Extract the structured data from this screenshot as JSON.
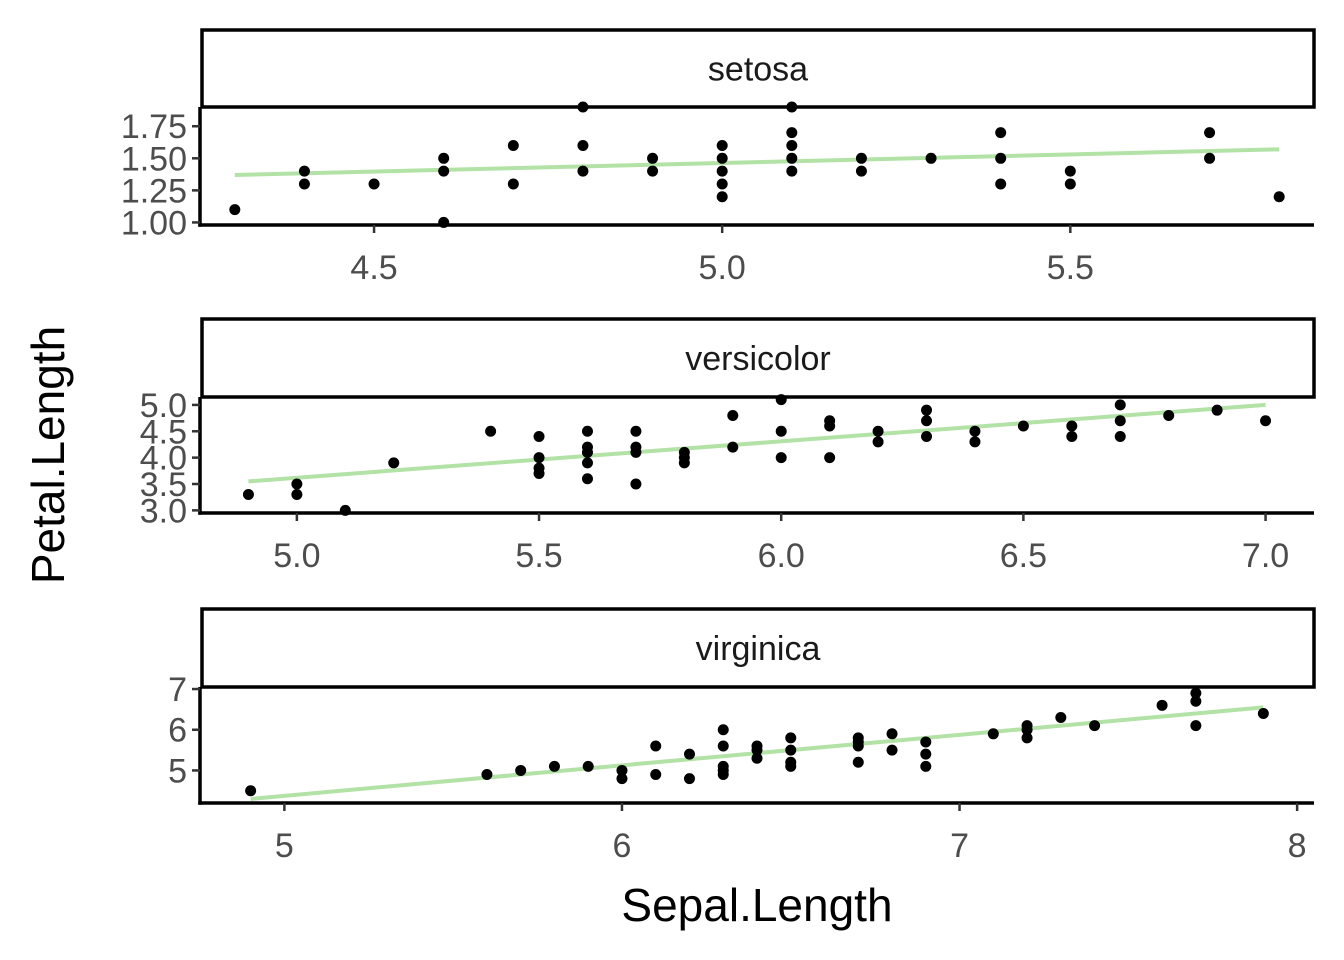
{
  "chart_data": {
    "type": "scatter",
    "xlabel": "Sepal.Length",
    "ylabel": "Petal.Length",
    "fit_color": "#b3e2a7",
    "point_color": "#000000",
    "grid": false,
    "panels": [
      {
        "name": "setosa",
        "xlim": [
          4.25,
          5.85
        ],
        "ylim": [
          0.98,
          1.9
        ],
        "xticks": [
          4.5,
          5.0,
          5.5
        ],
        "xtick_labels": [
          "4.5",
          "5.0",
          "5.5"
        ],
        "yticks": [
          1.0,
          1.25,
          1.5,
          1.75
        ],
        "ytick_labels": [
          "1.00",
          "1.25",
          "1.50",
          "1.75"
        ],
        "fit": {
          "x": [
            4.3,
            5.8
          ],
          "y": [
            1.37,
            1.57
          ]
        },
        "points": [
          [
            4.3,
            1.1
          ],
          [
            4.4,
            1.3
          ],
          [
            4.4,
            1.4
          ],
          [
            4.5,
            1.3
          ],
          [
            4.6,
            1.0
          ],
          [
            4.6,
            1.4
          ],
          [
            4.6,
            1.5
          ],
          [
            4.7,
            1.3
          ],
          [
            4.7,
            1.6
          ],
          [
            4.8,
            1.4
          ],
          [
            4.8,
            1.6
          ],
          [
            4.8,
            1.9
          ],
          [
            4.9,
            1.4
          ],
          [
            4.9,
            1.5
          ],
          [
            5.0,
            1.2
          ],
          [
            5.0,
            1.3
          ],
          [
            5.0,
            1.4
          ],
          [
            5.0,
            1.5
          ],
          [
            5.0,
            1.6
          ],
          [
            5.1,
            1.4
          ],
          [
            5.1,
            1.5
          ],
          [
            5.1,
            1.6
          ],
          [
            5.1,
            1.7
          ],
          [
            5.1,
            1.9
          ],
          [
            5.2,
            1.4
          ],
          [
            5.2,
            1.5
          ],
          [
            5.3,
            1.5
          ],
          [
            5.4,
            1.3
          ],
          [
            5.4,
            1.5
          ],
          [
            5.4,
            1.7
          ],
          [
            5.5,
            1.3
          ],
          [
            5.5,
            1.4
          ],
          [
            5.7,
            1.5
          ],
          [
            5.7,
            1.7
          ],
          [
            5.8,
            1.2
          ]
        ]
      },
      {
        "name": "versicolor",
        "xlim": [
          4.8,
          7.1
        ],
        "ylim": [
          2.95,
          5.15
        ],
        "xticks": [
          5.0,
          5.5,
          6.0,
          6.5,
          7.0
        ],
        "xtick_labels": [
          "5.0",
          "5.5",
          "6.0",
          "6.5",
          "7.0"
        ],
        "yticks": [
          3.0,
          3.5,
          4.0,
          4.5,
          5.0
        ],
        "ytick_labels": [
          "3.0",
          "3.5",
          "4.0",
          "4.5",
          "5.0"
        ],
        "fit": {
          "x": [
            4.9,
            7.0
          ],
          "y": [
            3.55,
            5.0
          ]
        },
        "points": [
          [
            4.9,
            3.3
          ],
          [
            5.0,
            3.3
          ],
          [
            5.0,
            3.5
          ],
          [
            5.1,
            3.0
          ],
          [
            5.2,
            3.9
          ],
          [
            5.4,
            4.5
          ],
          [
            5.5,
            3.7
          ],
          [
            5.5,
            3.8
          ],
          [
            5.5,
            4.0
          ],
          [
            5.5,
            4.4
          ],
          [
            5.6,
            3.6
          ],
          [
            5.6,
            3.9
          ],
          [
            5.6,
            4.1
          ],
          [
            5.6,
            4.2
          ],
          [
            5.6,
            4.5
          ],
          [
            5.7,
            3.5
          ],
          [
            5.7,
            4.1
          ],
          [
            5.7,
            4.2
          ],
          [
            5.7,
            4.5
          ],
          [
            5.8,
            3.9
          ],
          [
            5.8,
            4.0
          ],
          [
            5.8,
            4.1
          ],
          [
            5.9,
            4.2
          ],
          [
            5.9,
            4.8
          ],
          [
            6.0,
            4.0
          ],
          [
            6.0,
            4.5
          ],
          [
            6.0,
            5.1
          ],
          [
            6.1,
            4.0
          ],
          [
            6.1,
            4.6
          ],
          [
            6.1,
            4.7
          ],
          [
            6.2,
            4.3
          ],
          [
            6.2,
            4.5
          ],
          [
            6.3,
            4.4
          ],
          [
            6.3,
            4.7
          ],
          [
            6.3,
            4.9
          ],
          [
            6.4,
            4.3
          ],
          [
            6.4,
            4.5
          ],
          [
            6.5,
            4.6
          ],
          [
            6.6,
            4.4
          ],
          [
            6.6,
            4.6
          ],
          [
            6.7,
            4.4
          ],
          [
            6.7,
            4.7
          ],
          [
            6.7,
            5.0
          ],
          [
            6.8,
            4.8
          ],
          [
            6.9,
            4.9
          ],
          [
            7.0,
            4.7
          ]
        ]
      },
      {
        "name": "virginica",
        "xlim": [
          4.75,
          8.05
        ],
        "ylim": [
          4.2,
          7.05
        ],
        "xticks": [
          5,
          6,
          7,
          8
        ],
        "xtick_labels": [
          "5",
          "6",
          "7",
          "8"
        ],
        "yticks": [
          5,
          6,
          7
        ],
        "ytick_labels": [
          "5",
          "6",
          "7"
        ],
        "fit": {
          "x": [
            4.9,
            7.9
          ],
          "y": [
            4.3,
            6.55
          ]
        },
        "points": [
          [
            4.9,
            4.5
          ],
          [
            5.6,
            4.9
          ],
          [
            5.7,
            5.0
          ],
          [
            5.8,
            5.1
          ],
          [
            5.9,
            5.1
          ],
          [
            6.0,
            4.8
          ],
          [
            6.0,
            5.0
          ],
          [
            6.1,
            4.9
          ],
          [
            6.1,
            5.6
          ],
          [
            6.2,
            4.8
          ],
          [
            6.2,
            5.4
          ],
          [
            6.3,
            4.9
          ],
          [
            6.3,
            5.0
          ],
          [
            6.3,
            5.1
          ],
          [
            6.3,
            5.6
          ],
          [
            6.3,
            6.0
          ],
          [
            6.4,
            5.3
          ],
          [
            6.4,
            5.5
          ],
          [
            6.4,
            5.6
          ],
          [
            6.5,
            5.1
          ],
          [
            6.5,
            5.2
          ],
          [
            6.5,
            5.5
          ],
          [
            6.5,
            5.8
          ],
          [
            6.7,
            5.2
          ],
          [
            6.7,
            5.6
          ],
          [
            6.7,
            5.7
          ],
          [
            6.7,
            5.8
          ],
          [
            6.8,
            5.5
          ],
          [
            6.8,
            5.9
          ],
          [
            6.9,
            5.1
          ],
          [
            6.9,
            5.4
          ],
          [
            6.9,
            5.7
          ],
          [
            7.1,
            5.9
          ],
          [
            7.2,
            5.8
          ],
          [
            7.2,
            6.0
          ],
          [
            7.2,
            6.1
          ],
          [
            7.3,
            6.3
          ],
          [
            7.4,
            6.1
          ],
          [
            7.6,
            6.6
          ],
          [
            7.7,
            6.1
          ],
          [
            7.7,
            6.7
          ],
          [
            7.7,
            6.9
          ],
          [
            7.9,
            6.4
          ]
        ]
      }
    ]
  }
}
